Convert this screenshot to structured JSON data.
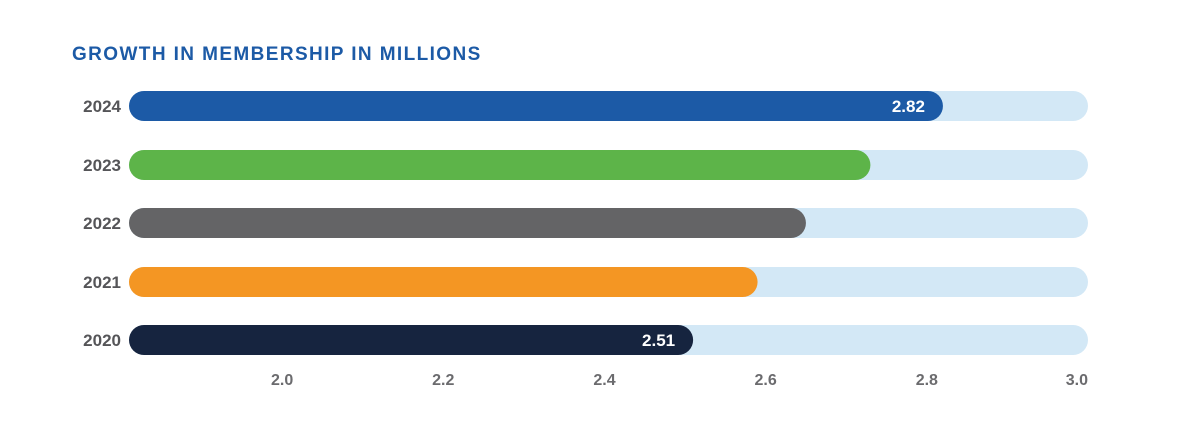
{
  "chart_data": {
    "type": "bar",
    "orientation": "horizontal",
    "title": "GROWTH IN MEMBERSHIP IN MILLIONS",
    "xlabel": "",
    "ylabel": "",
    "categories": [
      "2024",
      "2023",
      "2022",
      "2021",
      "2020"
    ],
    "values": [
      2.82,
      2.73,
      2.65,
      2.59,
      2.51
    ],
    "data_labels": [
      "2.82",
      "",
      "",
      "",
      "2.51"
    ],
    "colors": [
      "#1c5aa6",
      "#5db449",
      "#646466",
      "#f49623",
      "#16243f"
    ],
    "track_color": "#d3e8f6",
    "xlim": [
      1.81,
      3.0
    ],
    "xticks": [
      2.0,
      2.2,
      2.4,
      2.6,
      2.8,
      3.0
    ],
    "xtick_labels": [
      "2.0",
      "2.2",
      "2.4",
      "2.6",
      "2.8",
      "3.0"
    ],
    "grid": false,
    "legend": "none"
  }
}
